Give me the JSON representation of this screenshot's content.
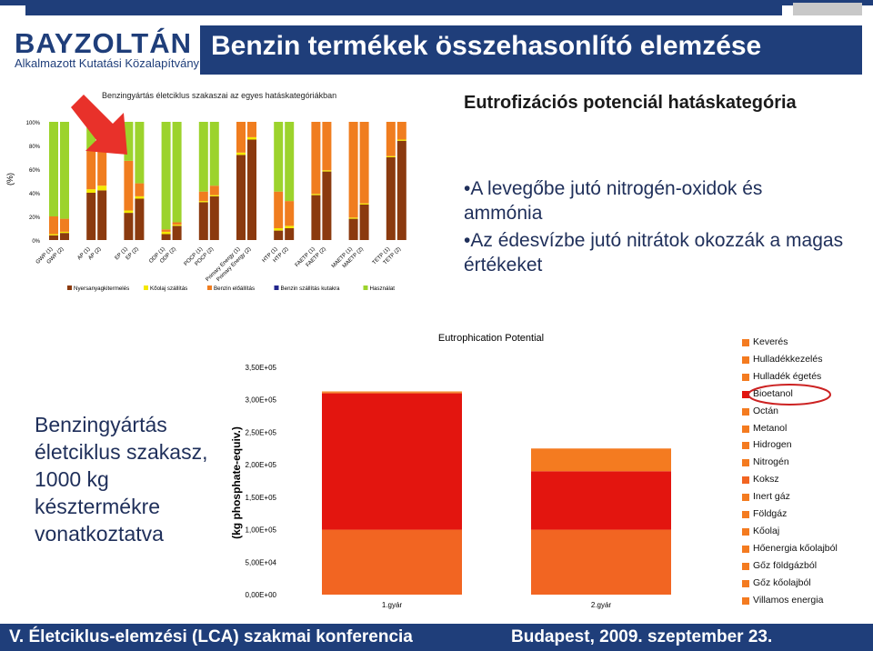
{
  "header": {
    "logo_main": "BAYZOLTÁN",
    "logo_sub": "Alkalmazott Kutatási Közalapítvány",
    "title": "Benzin termékek összehasonlító elemzése"
  },
  "section_title": "Eutrofizációs potenciál hatáskategória",
  "bullets": [
    "•A levegőbe jutó nitrogén-oxidok és ammónia",
    "•Az édesvízbe jutó nitrátok okozzák a magas értékeket"
  ],
  "left_note": "Benzingyártás életciklus szakasz, 1000 kg késztermékre vonatkoztatva",
  "footer": {
    "left": "V. Életciklus-elemzési (LCA) szakmai konferencia",
    "right": "Budapest, 2009. szeptember 23."
  },
  "colors": {
    "brand_blue": "#1f3e7a",
    "banner_blue": "#1f3e7a",
    "footer_blue": "#1f3e7a",
    "bullet_text": "#1f2f5a",
    "arrow_red": "#e8312a",
    "highlight_circle": "#cc2222"
  },
  "chart_data": [
    {
      "type": "bar",
      "stacked": true,
      "title": "Benzingyártás életciklus szakaszai az egyes hatáskategóriákban",
      "ylabel": "(%)",
      "ylim": [
        0,
        100
      ],
      "y_ticks": [
        "0%",
        "20%",
        "40%",
        "60%",
        "80%",
        "100%"
      ],
      "categories": [
        "GWP (1)",
        "GWP (2)",
        "AP (1)",
        "AP (2)",
        "EP (1)",
        "EP (2)",
        "ODP (1)",
        "ODP (2)",
        "POCP (1)",
        "POCP (2)",
        "Primary Energy (1)",
        "Primary Energy (2)",
        "HTP (1)",
        "HTP (2)",
        "FAETP (1)",
        "FAETP (2)",
        "MAETP (1)",
        "MAETP (2)",
        "TETP (1)",
        "TETP (2)"
      ],
      "series": [
        {
          "name": "Nyersanyagkitermelés",
          "color": "#8b3a0f",
          "values": [
            4,
            6,
            40,
            42,
            23,
            35,
            5,
            12,
            32,
            37,
            72,
            85,
            8,
            10,
            38,
            58,
            18,
            30,
            70,
            84
          ]
        },
        {
          "name": "Kőolaj szállítás",
          "color": "#f4e800",
          "values": [
            1,
            1,
            3,
            4,
            2,
            2,
            2,
            1,
            1,
            1,
            2,
            2,
            2,
            2,
            1,
            1,
            1,
            1,
            1,
            1
          ]
        },
        {
          "name": "Benzin előállítás",
          "color": "#f07d1f",
          "values": [
            15,
            11,
            32,
            31,
            42,
            11,
            2,
            2,
            8,
            8,
            26,
            13,
            31,
            21,
            61,
            41,
            81,
            69,
            29,
            15
          ]
        },
        {
          "name": "Benzin szállítás kutakra",
          "color": "#22258c",
          "values": [
            0,
            0,
            0,
            0,
            0,
            0,
            0,
            0,
            0,
            0,
            0,
            0,
            0,
            0,
            0,
            0,
            0,
            0,
            0,
            0
          ]
        },
        {
          "name": "Használat",
          "color": "#9cd32c",
          "values": [
            80,
            82,
            25,
            23,
            33,
            52,
            91,
            85,
            59,
            54,
            0,
            0,
            59,
            67,
            0,
            0,
            0,
            0,
            0,
            0
          ]
        }
      ],
      "legend_position": "bottom"
    },
    {
      "type": "bar",
      "stacked": true,
      "title": "Eutrophication Potential",
      "ylabel": "(kg phosphate-equiv.)",
      "ylim": [
        0,
        350000
      ],
      "y_ticks": [
        "0,00E+00",
        "5,00E+04",
        "1,00E+05",
        "1,50E+05",
        "2,00E+05",
        "2,50E+05",
        "3,00E+05",
        "3,50E+05"
      ],
      "categories": [
        "1.gyár",
        "2.gyár"
      ],
      "series": [
        {
          "name": "Koksz",
          "color": "#f26522",
          "values": [
            100000,
            100000
          ]
        },
        {
          "name": "Bioetanol",
          "color": "#e3150f",
          "values": [
            210000,
            90000
          ]
        },
        {
          "name": "Hőenergia kőolajból",
          "color": "#f47b20",
          "values": [
            2000,
            35000
          ]
        },
        {
          "name": "Keverés",
          "color": "#f4983c",
          "values": [
            1000,
            0
          ]
        }
      ],
      "legend_items": [
        "Keverés",
        "Hulladékkezelés",
        "Hulladék égetés",
        "Bioetanol",
        "Octán",
        "Metanol",
        "Hidrogen",
        "Nitrogén",
        "Koksz",
        "Inert gáz",
        "Földgáz",
        "Kőolaj",
        "Hőenergia kőolajból",
        "Gőz földgázból",
        "Gőz kőolajból",
        "Villamos energia"
      ],
      "highlighted_legend_item": "Bioetanol",
      "legend_position": "right"
    }
  ]
}
